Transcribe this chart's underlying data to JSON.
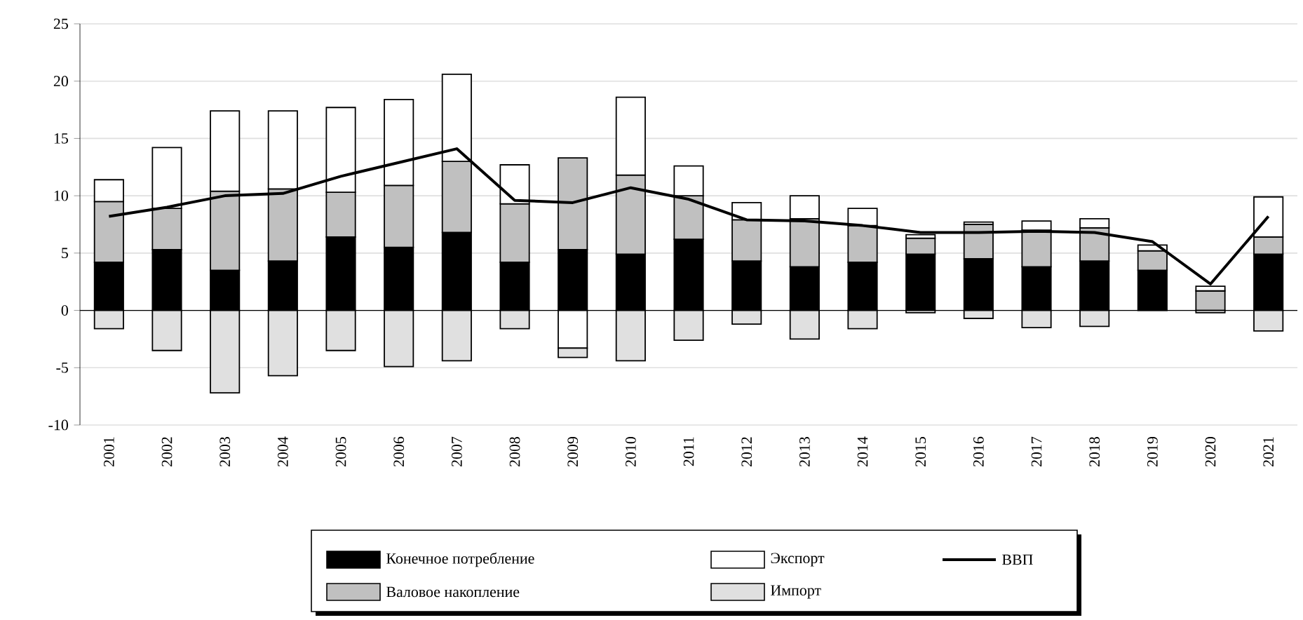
{
  "chart_data": {
    "type": "bar",
    "stacked": true,
    "categories": [
      "2001",
      "2002",
      "2003",
      "2004",
      "2005",
      "2006",
      "2007",
      "2008",
      "2009",
      "2010",
      "2011",
      "2012",
      "2013",
      "2014",
      "2015",
      "2016",
      "2017",
      "2018",
      "2019",
      "2020",
      "2021"
    ],
    "series": [
      {
        "name": "Конечное потребление",
        "color": "#000000",
        "values": [
          4.2,
          5.3,
          3.5,
          4.3,
          6.4,
          5.5,
          6.8,
          4.2,
          5.3,
          4.9,
          6.2,
          4.3,
          3.8,
          4.2,
          4.9,
          4.5,
          3.8,
          4.3,
          3.5,
          null,
          4.9
        ]
      },
      {
        "name": "Валовое накопление",
        "color": "#c0c0c0",
        "values": [
          5.3,
          3.6,
          6.9,
          6.3,
          3.9,
          5.4,
          6.2,
          5.1,
          8.0,
          6.9,
          3.8,
          3.6,
          4.2,
          3.2,
          1.4,
          3.0,
          3.2,
          2.9,
          1.7,
          1.7,
          1.5
        ]
      },
      {
        "name": "Экспорт",
        "color": "#ffffff",
        "values": [
          1.9,
          5.3,
          7.0,
          6.8,
          7.4,
          7.5,
          7.6,
          3.4,
          -3.3,
          6.8,
          2.6,
          1.5,
          2.0,
          1.5,
          0.3,
          0.2,
          0.8,
          0.8,
          0.5,
          0.4,
          3.5
        ]
      },
      {
        "name": "Импорт",
        "color": "#e0e0e0",
        "values": [
          -1.6,
          -3.5,
          -7.2,
          -5.7,
          -3.5,
          -4.9,
          -4.4,
          -1.6,
          -0.8,
          -4.4,
          -2.6,
          -1.2,
          -2.5,
          -1.6,
          -0.2,
          -0.7,
          -1.5,
          -1.4,
          0,
          -0.2,
          -1.8
        ]
      },
      {
        "name": "ВВП",
        "color": "#000000",
        "type": "line",
        "values": [
          8.2,
          9.0,
          10.0,
          10.2,
          11.7,
          12.9,
          14.1,
          9.6,
          9.4,
          10.7,
          9.7,
          7.9,
          7.8,
          7.4,
          6.8,
          6.8,
          6.9,
          6.8,
          6.0,
          2.3,
          8.2
        ]
      }
    ],
    "ylim": [
      -10,
      25
    ],
    "yticks": [
      -10,
      -5,
      0,
      5,
      10,
      15,
      20,
      25
    ],
    "grid": "y",
    "legend": "bottom"
  }
}
